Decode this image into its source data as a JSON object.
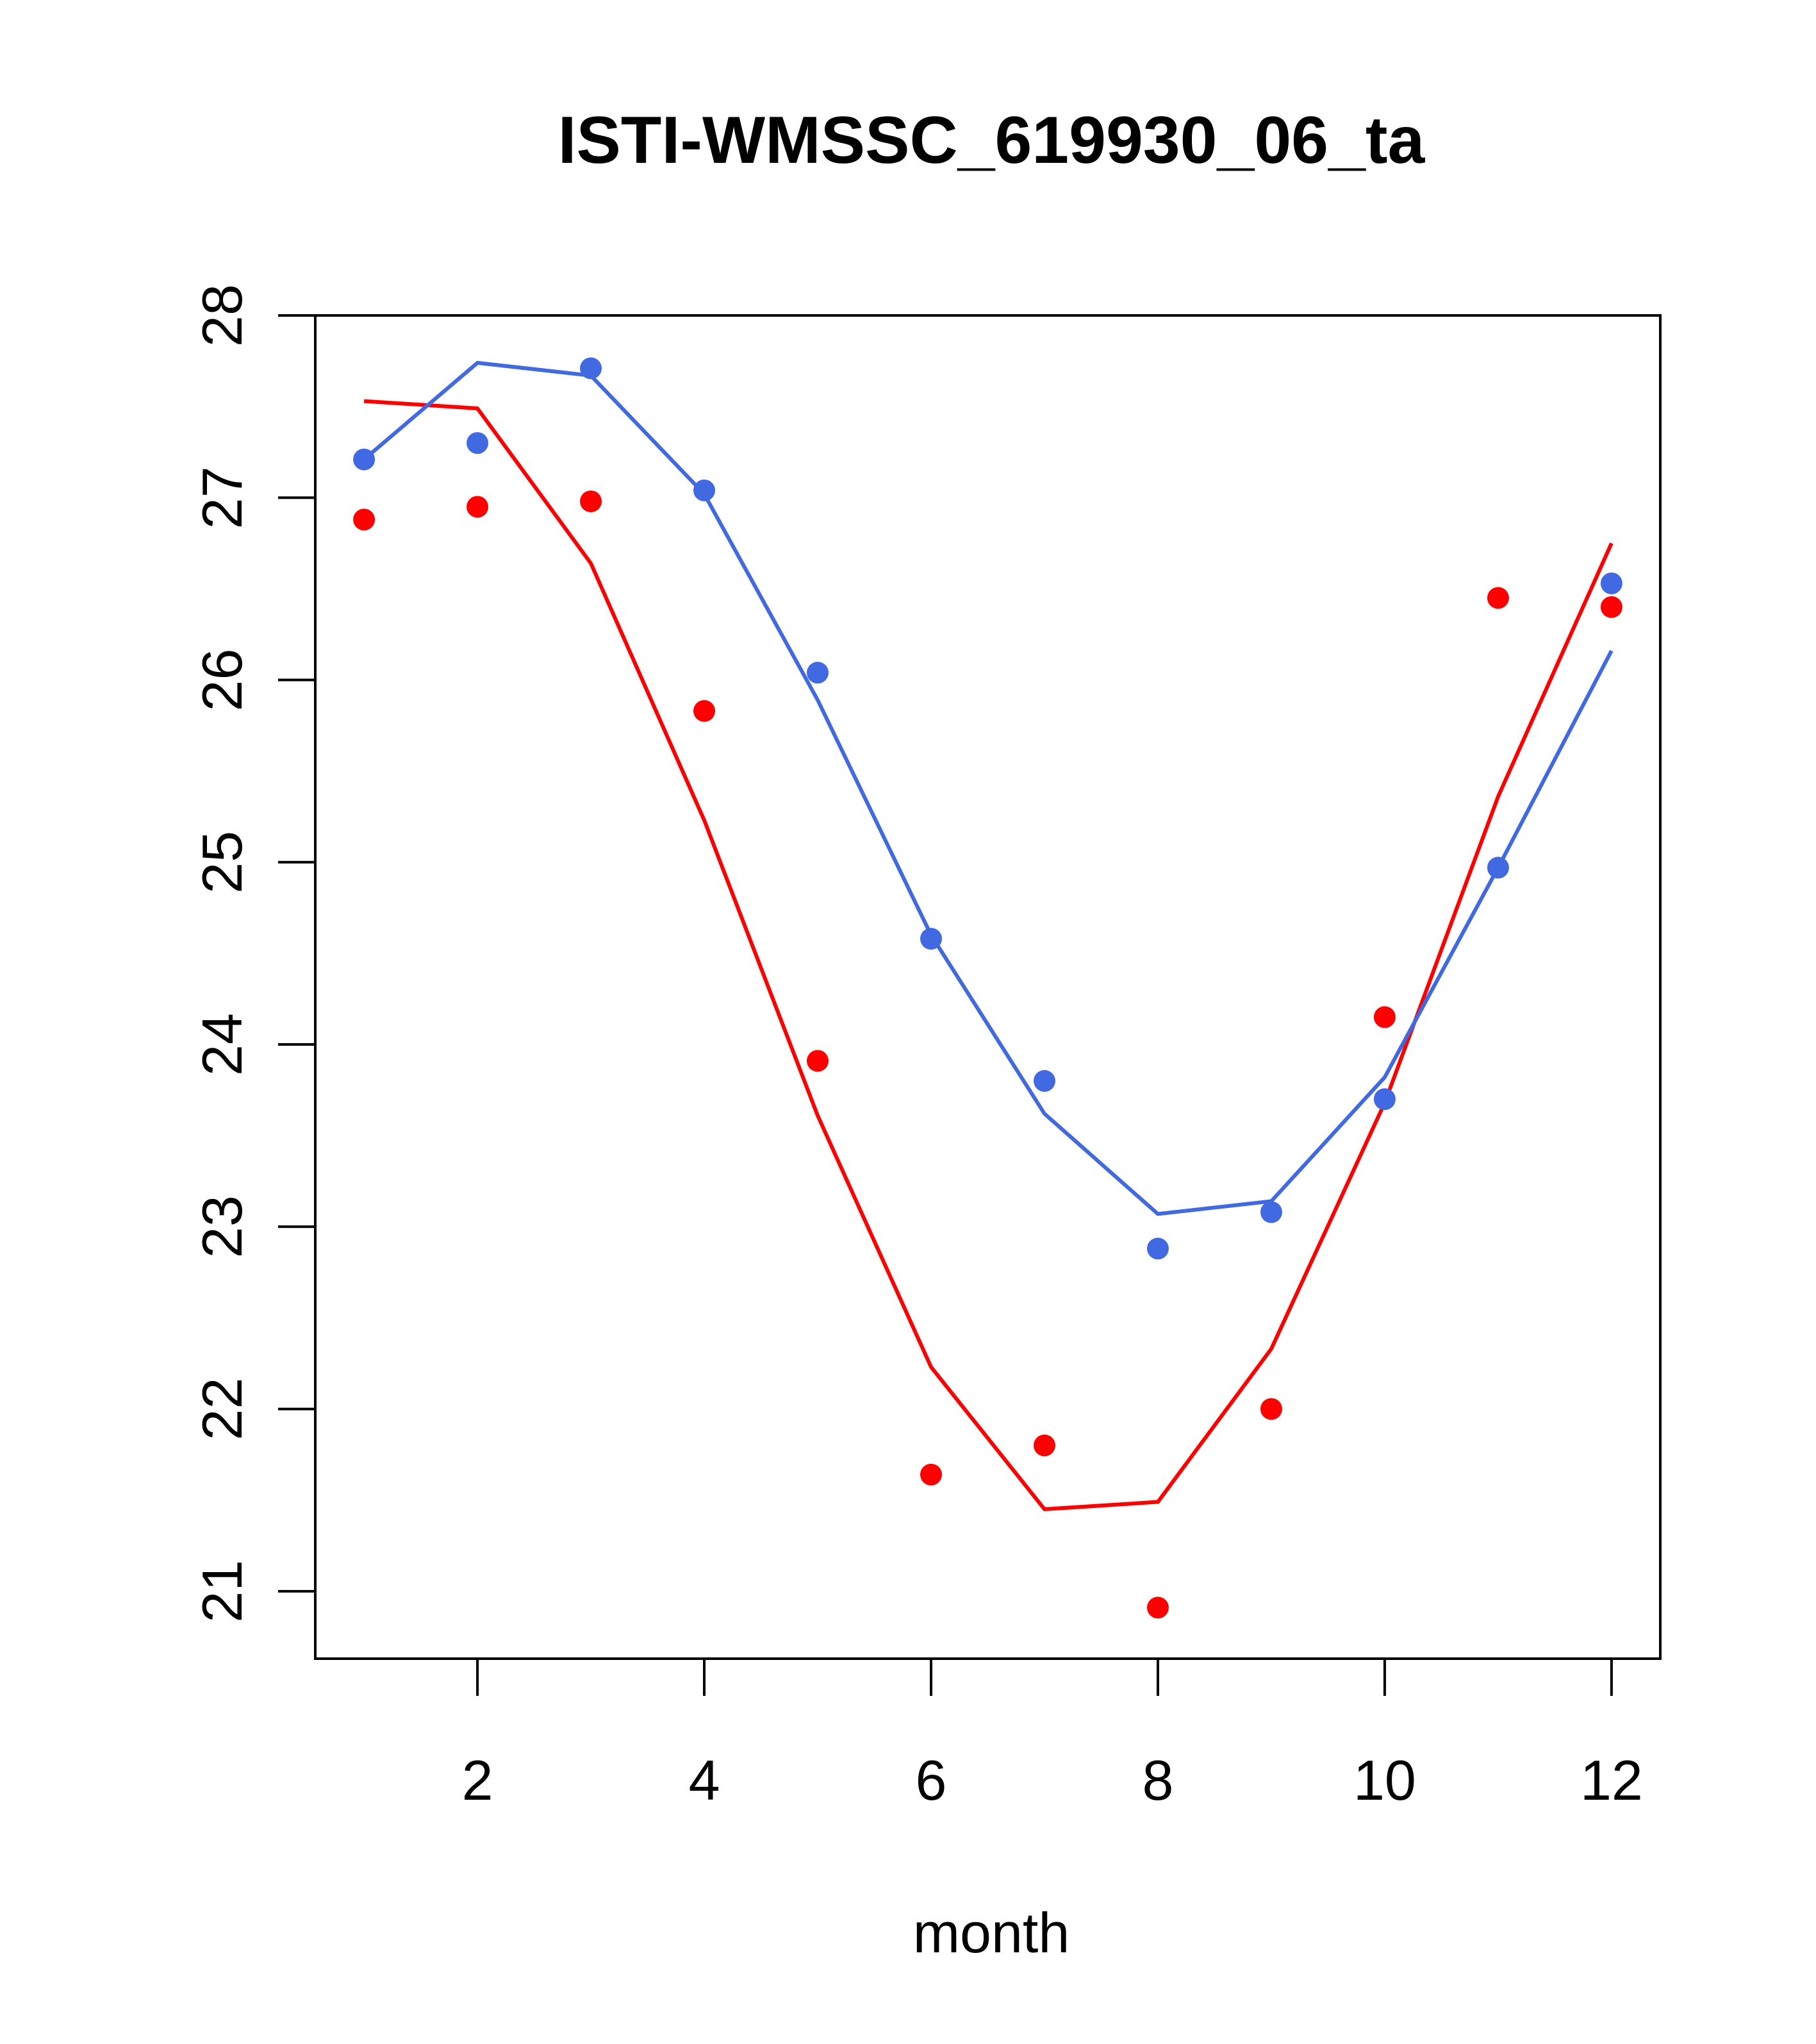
{
  "chart_data": {
    "type": "line",
    "title": "ISTI-WMSSC_619930_06_ta",
    "xlabel": "month",
    "ylabel": "",
    "xlim": [
      0.57,
      12.43
    ],
    "ylim": [
      20.63,
      28.0
    ],
    "xticks": [
      2,
      4,
      6,
      8,
      10,
      12
    ],
    "yticks": [
      21,
      22,
      23,
      24,
      25,
      26,
      27,
      28
    ],
    "grid": false,
    "legend": "none",
    "x": [
      1,
      2,
      3,
      4,
      5,
      6,
      7,
      8,
      9,
      10,
      11,
      12
    ],
    "series": [
      {
        "name": "red points",
        "kind": "points",
        "color": "#ff0000",
        "values": [
          26.88,
          26.95,
          26.98,
          25.83,
          23.91,
          21.64,
          21.8,
          20.91,
          22.0,
          24.15,
          26.45,
          26.4
        ]
      },
      {
        "name": "red line",
        "kind": "line",
        "color": "#ff0000",
        "values": [
          27.53,
          27.49,
          26.64,
          25.23,
          23.61,
          22.23,
          21.45,
          21.49,
          22.33,
          23.68,
          25.36,
          26.75
        ]
      },
      {
        "name": "blue points",
        "kind": "points",
        "color": "#4169e1",
        "values": [
          27.21,
          27.3,
          27.71,
          27.04,
          26.04,
          24.58,
          23.8,
          22.88,
          23.08,
          23.7,
          24.97,
          26.53
        ]
      },
      {
        "name": "blue line",
        "kind": "line",
        "color": "#4169e1",
        "values": [
          27.21,
          27.74,
          27.67,
          27.02,
          25.89,
          24.6,
          23.62,
          23.07,
          23.14,
          23.82,
          24.97,
          26.16
        ]
      }
    ]
  }
}
